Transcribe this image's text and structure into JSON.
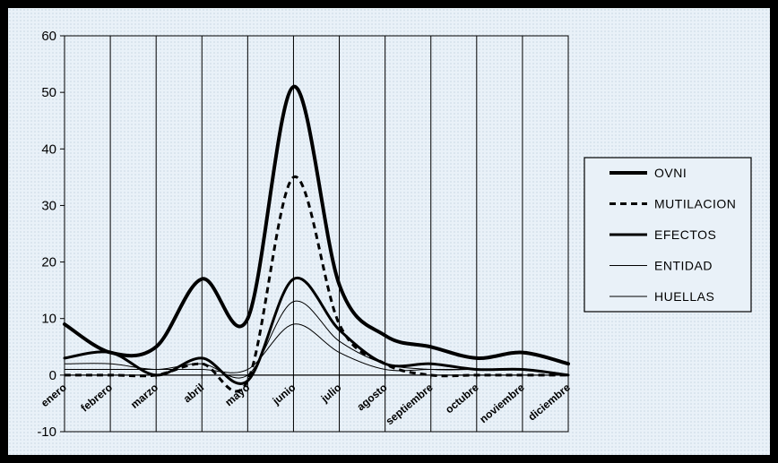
{
  "chart_data": {
    "type": "line",
    "title": "",
    "xlabel": "",
    "ylabel": "",
    "ylim": [
      -10,
      60
    ],
    "yticks": [
      60,
      50,
      40,
      30,
      20,
      10,
      0,
      -10
    ],
    "grid": "vertical",
    "legend_position": "right",
    "categories": [
      "enero",
      "febrero",
      "marzo",
      "abril",
      "mayo",
      "junio",
      "julio",
      "agosto",
      "septiembre",
      "octubre",
      "noviembre",
      "diciembre"
    ],
    "series": [
      {
        "name": "OVNI",
        "values": [
          9,
          4,
          5,
          17,
          10,
          51,
          16,
          7,
          5,
          3,
          4,
          2
        ],
        "style": "solid",
        "width": 4,
        "color": "#000000"
      },
      {
        "name": "MUTILACION",
        "values": [
          0,
          0,
          0,
          2,
          -1,
          35,
          9,
          2,
          0,
          0,
          0,
          0
        ],
        "style": "dashed",
        "width": 3,
        "color": "#000000"
      },
      {
        "name": "EFECTOS",
        "values": [
          3,
          4,
          0,
          3,
          -1,
          17,
          8,
          2,
          2,
          1,
          1,
          0
        ],
        "style": "solid",
        "width": 3,
        "color": "#000000"
      },
      {
        "name": "ENTIDAD",
        "values": [
          2,
          2,
          1,
          2,
          0,
          13,
          6,
          2,
          1,
          1,
          1,
          0
        ],
        "style": "solid",
        "width": 1,
        "color": "#000000"
      },
      {
        "name": "HUELLAS",
        "values": [
          1,
          1,
          1,
          1,
          1,
          9,
          4,
          1,
          1,
          1,
          1,
          0
        ],
        "style": "solid",
        "width": 1,
        "color": "#000000"
      }
    ]
  }
}
